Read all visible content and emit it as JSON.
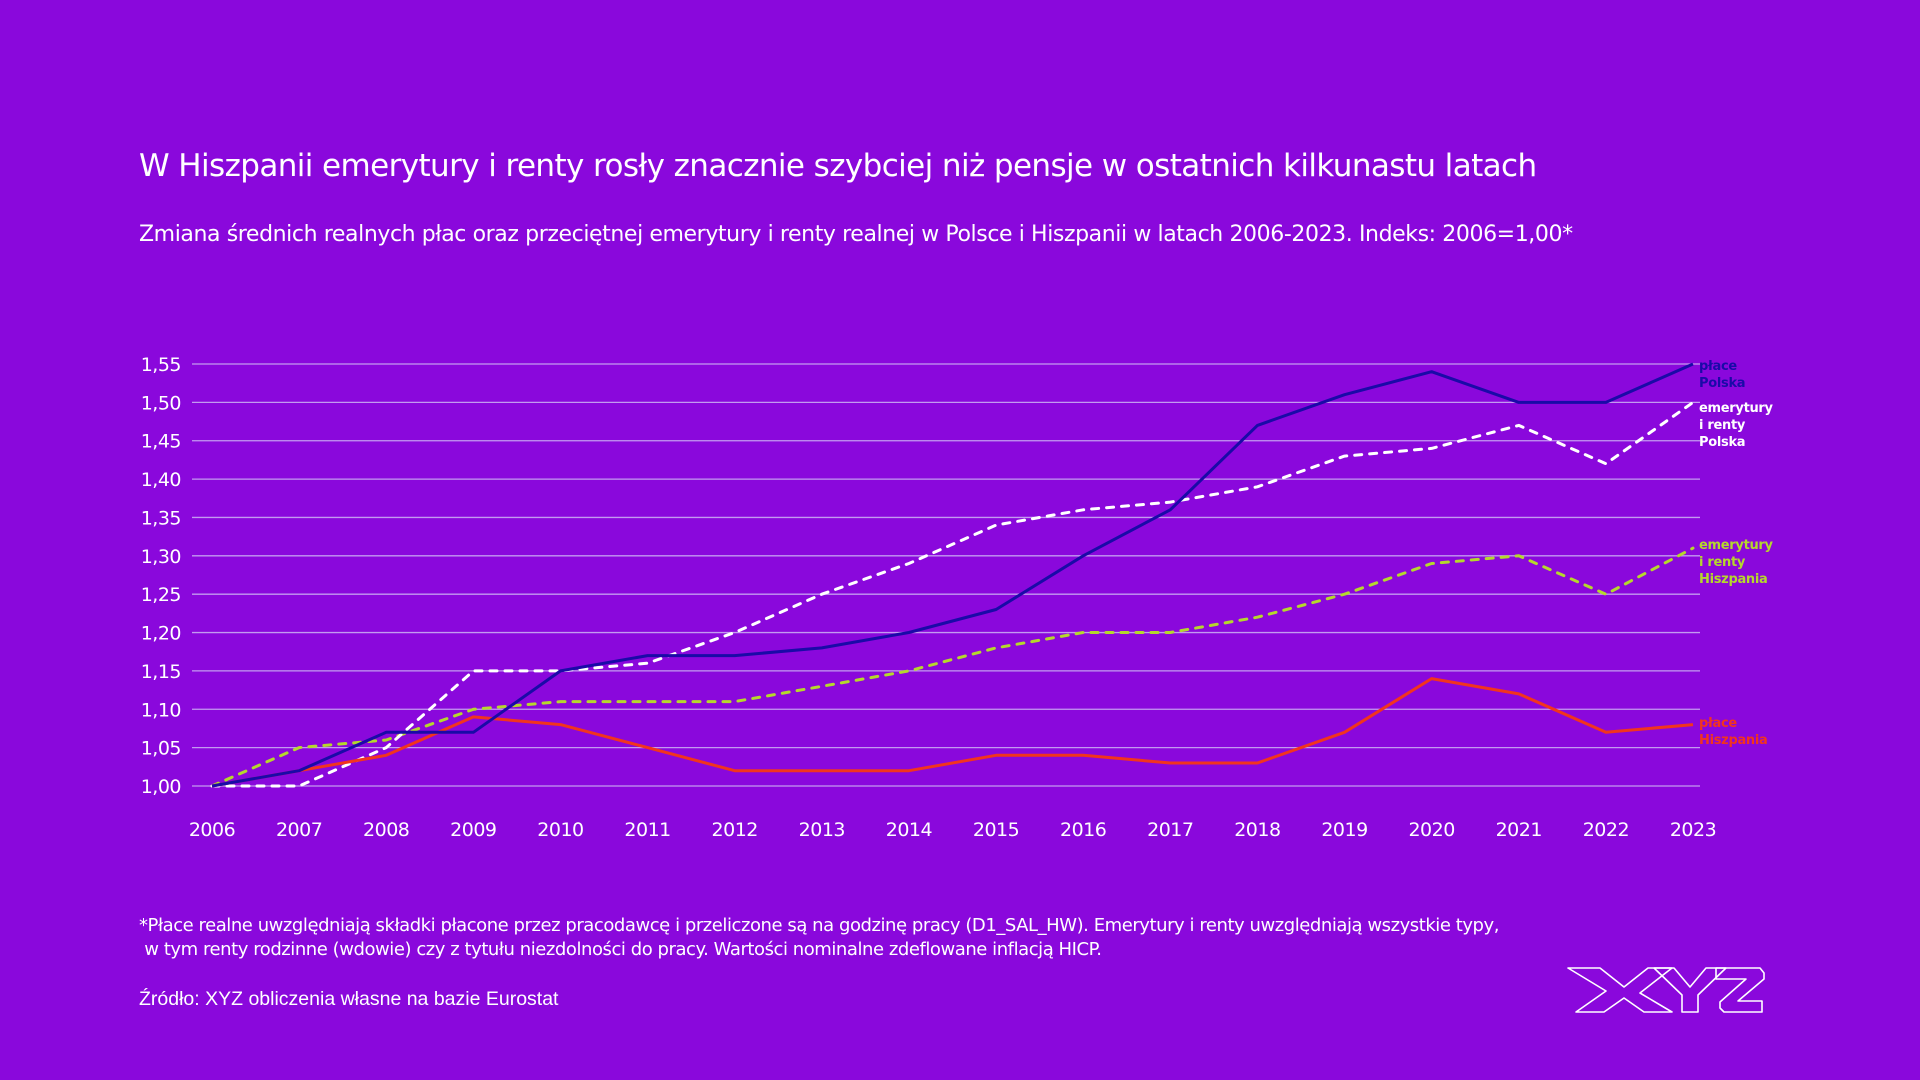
{
  "header": {
    "title": "W Hiszpanii emerytury i renty rosły znacznie szybciej niż pensje w ostatnich kilkunastu latach",
    "subtitle": "Zmiana średnich realnych płac oraz przeciętnej emerytury i renty realnej w Polsce i Hiszpanii w latach 2006-2023. Indeks: 2006=1,00*"
  },
  "footer": {
    "note_line1": "*Płace realne uwzględniają składki płacone przez pracodawcę i przeliczone są na godzinę pracy (D1_SAL_HW). Emerytury i renty uwzględniają wszystkie typy,",
    "note_line2": " w tym renty rodzinne (wdowie) czy z tytułu niezdolności do pracy. Wartości nominalne zdeflowane inflacją HICP.",
    "source": "Źródło: XYZ obliczenia własne na bazie Eurostat",
    "logo_text": "XYZ"
  },
  "colors": {
    "background": "#8a08dc",
    "grid": "#c39af0",
    "text": "#ffffff"
  },
  "chart_data": {
    "type": "line",
    "title": "W Hiszpanii emerytury i renty rosły znacznie szybciej niż pensje w ostatnich kilkunastu latach",
    "xlabel": "",
    "ylabel": "",
    "x": [
      "2006",
      "2007",
      "2008",
      "2009",
      "2010",
      "2011",
      "2012",
      "2013",
      "2014",
      "2015",
      "2016",
      "2017",
      "2018",
      "2019",
      "2020",
      "2021",
      "2022",
      "2023"
    ],
    "ylim": [
      1.0,
      1.55
    ],
    "yticks": [
      1.0,
      1.05,
      1.1,
      1.15,
      1.2,
      1.25,
      1.3,
      1.35,
      1.4,
      1.45,
      1.5,
      1.55
    ],
    "ytick_labels": [
      "1,00",
      "1,05",
      "1,10",
      "1,15",
      "1,20",
      "1,25",
      "1,30",
      "1,35",
      "1,40",
      "1,45",
      "1,50",
      "1,55"
    ],
    "grid": true,
    "legend": "right (end-of-line labels)",
    "series": [
      {
        "name": "płace Polska",
        "label_lines": [
          "płace",
          "Polska"
        ],
        "color": "#1a0aa8",
        "style": "solid",
        "values": [
          1.0,
          1.02,
          1.07,
          1.07,
          1.15,
          1.17,
          1.17,
          1.18,
          1.2,
          1.23,
          1.3,
          1.36,
          1.47,
          1.51,
          1.54,
          1.5,
          1.5,
          1.55
        ]
      },
      {
        "name": "emerytury i renty Polska",
        "label_lines": [
          "emerytury",
          "i renty",
          "Polska"
        ],
        "color": "#ffffff",
        "style": "dotted",
        "values": [
          1.0,
          1.0,
          1.05,
          1.15,
          1.15,
          1.16,
          1.2,
          1.25,
          1.29,
          1.34,
          1.36,
          1.37,
          1.39,
          1.43,
          1.44,
          1.47,
          1.42,
          1.5
        ]
      },
      {
        "name": "emerytury i renty Hiszpania",
        "label_lines": [
          "emerytury",
          "i renty",
          "Hiszpania"
        ],
        "color": "#b5d82c",
        "style": "dotted",
        "values": [
          1.0,
          1.05,
          1.06,
          1.1,
          1.11,
          1.11,
          1.11,
          1.13,
          1.15,
          1.18,
          1.2,
          1.2,
          1.22,
          1.25,
          1.29,
          1.3,
          1.25,
          1.31
        ]
      },
      {
        "name": "płace Hiszpania",
        "label_lines": [
          "płace",
          "Hiszpania"
        ],
        "color": "#f2341e",
        "style": "solid",
        "values": [
          1.0,
          1.02,
          1.04,
          1.09,
          1.08,
          1.05,
          1.02,
          1.02,
          1.02,
          1.04,
          1.04,
          1.03,
          1.03,
          1.07,
          1.14,
          1.12,
          1.07,
          1.08
        ]
      }
    ]
  }
}
